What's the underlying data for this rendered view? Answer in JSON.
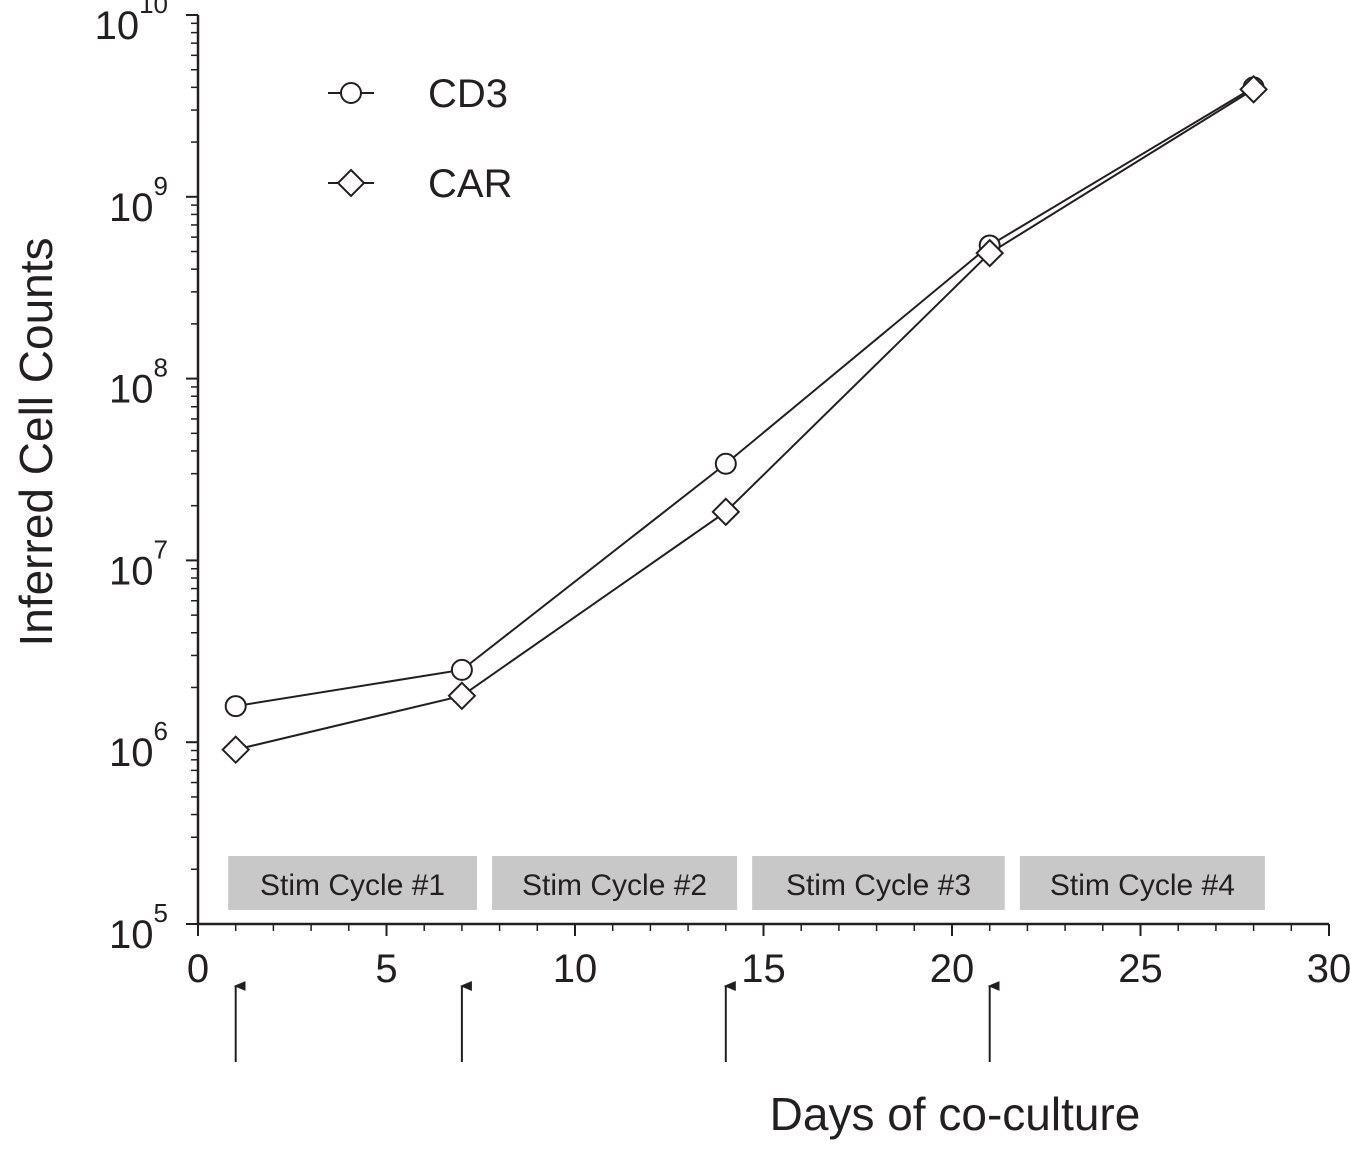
{
  "chart_data": {
    "type": "line",
    "xlabel": "Days of co-culture",
    "ylabel": "Inferred Cell Counts",
    "x": [
      1,
      7,
      14,
      21,
      28
    ],
    "series": [
      {
        "name": "CD3",
        "color": "#231f20",
        "marker": "circle",
        "values": [
          1580000,
          2500000,
          34000000,
          540000000,
          4000000000
        ]
      },
      {
        "name": "CAR",
        "color": "#231f20",
        "marker": "diamond",
        "values": [
          910000,
          1800000,
          18500000,
          490000000,
          3900000000
        ]
      }
    ],
    "xlim": [
      0,
      30
    ],
    "xticks": [
      0,
      5,
      10,
      15,
      20,
      25,
      30
    ],
    "xminorticks": [
      1,
      2,
      3,
      4,
      6,
      7,
      8,
      9,
      11,
      12,
      13,
      14,
      16,
      17,
      18,
      19,
      21,
      22,
      23,
      24,
      26,
      27,
      28,
      29
    ],
    "ylim": [
      100000,
      10000000000
    ],
    "ylog": true,
    "yticks": [
      {
        "value": 100000,
        "label": "10",
        "exponent": "5"
      },
      {
        "value": 1000000,
        "label": "10",
        "exponent": "6"
      },
      {
        "value": 10000000,
        "label": "10",
        "exponent": "7"
      },
      {
        "value": 100000000,
        "label": "10",
        "exponent": "8"
      },
      {
        "value": 1000000000,
        "label": "10",
        "exponent": "9"
      },
      {
        "value": 10000000000,
        "label": "10",
        "exponent": "10"
      }
    ],
    "yminorticks": [
      200000,
      300000,
      400000,
      500000,
      600000,
      700000,
      800000,
      900000,
      2000000,
      3000000,
      4000000,
      5000000,
      6000000,
      7000000,
      8000000,
      9000000,
      20000000,
      30000000,
      40000000,
      50000000,
      60000000,
      70000000,
      80000000,
      90000000,
      200000000,
      300000000,
      400000000,
      500000000,
      600000000,
      700000000,
      800000000,
      900000000,
      2000000000,
      3000000000,
      4000000000,
      5000000000,
      6000000000,
      7000000000,
      8000000000,
      9000000000
    ],
    "legend": "upper left",
    "stim_cycles": [
      {
        "label": "Stim Cycle #1",
        "start": 0.8,
        "end": 7.4
      },
      {
        "label": "Stim Cycle #2",
        "start": 7.8,
        "end": 14.3
      },
      {
        "label": "Stim Cycle #3",
        "start": 14.7,
        "end": 21.4
      },
      {
        "label": "Stim Cycle #4",
        "start": 21.8,
        "end": 28.3
      }
    ],
    "stim_color": "#c8c8c9",
    "arrows_x": [
      1,
      7,
      14,
      21
    ]
  }
}
